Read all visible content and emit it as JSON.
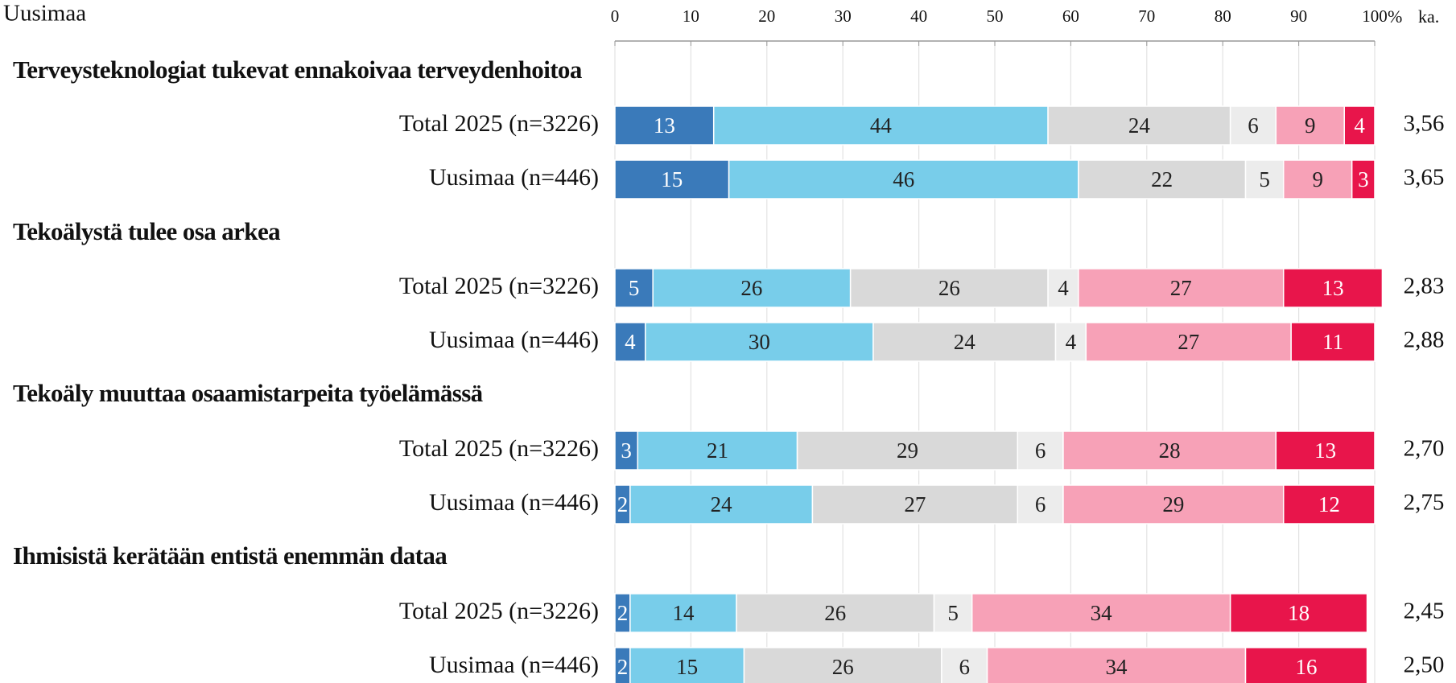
{
  "chart_data": {
    "type": "stacked_bar_horizontal",
    "title": "Uusimaa",
    "x_unit": "%",
    "mean_label": "ka.",
    "groups": [
      "Terveysteknologiat tukevat ennakoivaa terveydenhoitoa",
      "Tekoälystä tulee osa arkea",
      "Tekoäly muuttaa osaamistarpeita työelämässä",
      "Ihmisistä kerätään entistä enemmän dataa"
    ],
    "categories": [
      "Total 2025 (n=3226)",
      "Uusimaa (n=446)",
      "Total 2025 (n=3226)",
      "Uusimaa (n=446)",
      "Total 2025 (n=3226)",
      "Uusimaa (n=446)",
      "Total 2025 (n=3226)",
      "Uusimaa (n=446)"
    ],
    "series": [
      {
        "color": "#3a7aba",
        "label_color": "#ffffff",
        "values": [
          13,
          15,
          5,
          4,
          3,
          2,
          2,
          2
        ]
      },
      {
        "color": "#78cdea",
        "label_color": "#222222",
        "values": [
          44,
          46,
          26,
          30,
          21,
          24,
          14,
          15
        ]
      },
      {
        "color": "#d9d9d9",
        "label_color": "#222222",
        "values": [
          24,
          22,
          26,
          24,
          29,
          27,
          26,
          26
        ]
      },
      {
        "color": "#ececec",
        "label_color": "#222222",
        "values": [
          6,
          5,
          4,
          4,
          6,
          6,
          5,
          6
        ]
      },
      {
        "color": "#f7a1b7",
        "label_color": "#222222",
        "values": [
          9,
          9,
          27,
          27,
          28,
          29,
          34,
          34
        ]
      },
      {
        "color": "#e8154b",
        "label_color": "#ffffff",
        "values": [
          4,
          3,
          13,
          11,
          13,
          12,
          18,
          16
        ]
      }
    ],
    "means": {
      "values": [
        3.56,
        3.65,
        2.83,
        2.88,
        2.7,
        2.75,
        2.45,
        2.5
      ],
      "value_labels": [
        "3,56",
        "3,65",
        "2,83",
        "2,88",
        "2,70",
        "2,75",
        "2,45",
        "2,50"
      ]
    },
    "xlim": [
      0,
      100
    ],
    "xticks": [
      0,
      10,
      20,
      30,
      40,
      50,
      60,
      70,
      80,
      90,
      100
    ],
    "grid": true
  }
}
